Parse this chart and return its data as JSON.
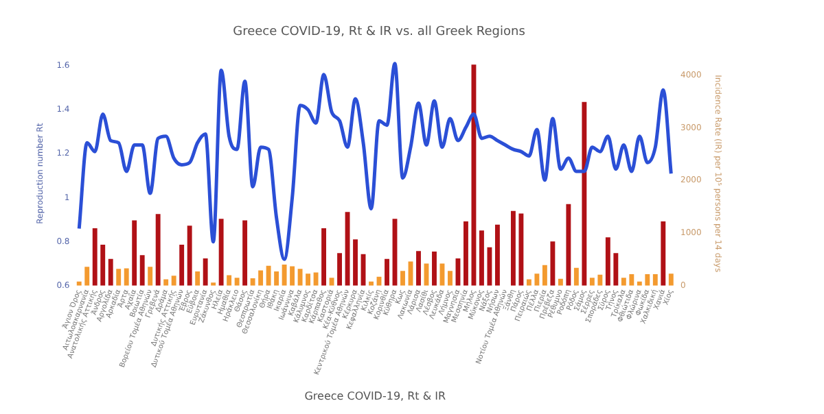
{
  "chart_data": {
    "type": "bar",
    "title": "Greece COVID-19, Rt & IR vs. all Greek Regions",
    "xlabel": "Greece COVID-19, Rt & IR",
    "ylabel": "Reproduction number Rt",
    "y2label": "Incidence Rate (IR) per 10⁵ persons per 14 days",
    "categories": [
      "Άγιον Όρος",
      "Αιτωλοακαρνανία",
      "Ανατολικής Αττικής",
      "Άνδρος",
      "Αργολίδα",
      "Αρκαδία",
      "Άρτα",
      "Αχαΐα",
      "Βοιωτία",
      "Βορείου Τομέα Αθηνών",
      "Γρεβενά",
      "Δράμα",
      "Δυτικής Αττικής",
      "Δυτικού Τομέα Αθηνών",
      "Έβρος",
      "Εύβοια",
      "Ευρυτανία",
      "Ζάκυνθος",
      "Ηλεία",
      "Ημαθία",
      "Ηράκλειο",
      "Θάσος",
      "Θεσπρωτία",
      "Θεσσαλονίκη",
      "Θήρα",
      "Ιθάκη",
      "Ικαρία",
      "Ιωάννινα",
      "Καβάλα",
      "Κάλυμνος",
      "Καρδίτσα",
      "Κάρπαθος",
      "Καστοριά",
      "Κέα-Κύθνος",
      "Κεντρικού Τομέα Αθηνών",
      "Κέρκυρα",
      "Κεφαλληνία",
      "Κιλκίς",
      "Κοζάνη",
      "Κορινθία",
      "Κύθηρα",
      "Κως",
      "Λακωνία",
      "Λάρισα",
      "Λασίθι",
      "Λέσβος",
      "Λευκάδα",
      "Λήμνος",
      "Μαγνησία",
      "Μεσσηνία",
      "Μήλος",
      "Μύκονος",
      "Νάξος",
      "Νήσων",
      "Νοτίου Τομέα Αθηνών",
      "Ξάνθη",
      "Πάρος",
      "Πειραιώς",
      "Πέλλα",
      "Πιερία",
      "Πρέβεζα",
      "Ρέθυμνο",
      "Ροδόπη",
      "Ρόδος",
      "Σάμος",
      "Σέρρες",
      "Σποράδες",
      "Σύρος",
      "Τήνος",
      "Τρίκαλα",
      "Φθιώτιδα",
      "Φλώρινα",
      "Φωκίδα",
      "Χαλκιδική",
      "Χανιά",
      "Χίος"
    ],
    "series": [
      {
        "axis": "y2",
        "colors": [
          "#f39a2f",
          "#f39a2f",
          "#b01116",
          "#b01116",
          "#b01116",
          "#f39a2f",
          "#f39a2f",
          "#b01116",
          "#b01116",
          "#f39a2f",
          "#b01116",
          "#f39a2f",
          "#f39a2f",
          "#b01116",
          "#b01116",
          "#f39a2f",
          "#b01116",
          "#f39a2f",
          "#b01116",
          "#f39a2f",
          "#f39a2f",
          "#b01116",
          "#f39a2f",
          "#f39a2f",
          "#f39a2f",
          "#f39a2f",
          "#f39a2f",
          "#f39a2f",
          "#f39a2f",
          "#f39a2f",
          "#f39a2f",
          "#b01116",
          "#f39a2f",
          "#b01116",
          "#b01116",
          "#b01116",
          "#b01116",
          "#f39a2f",
          "#f39a2f",
          "#b01116",
          "#b01116",
          "#f39a2f",
          "#f39a2f",
          "#b01116",
          "#f39a2f",
          "#b01116",
          "#f39a2f",
          "#f39a2f",
          "#b01116",
          "#b01116",
          "#b01116",
          "#b01116",
          "#b01116",
          "#b01116",
          "#f39a2f",
          "#b01116",
          "#b01116",
          "#f39a2f",
          "#f39a2f",
          "#f39a2f",
          "#b01116",
          "#f39a2f",
          "#b01116",
          "#f39a2f",
          "#b01116",
          "#f39a2f",
          "#f39a2f",
          "#b01116",
          "#b01116",
          "#f39a2f",
          "#f39a2f",
          "#f39a2f",
          "#f39a2f",
          "#f39a2f",
          "#b01116",
          "#f39a2f"
        ],
        "values": [
          80,
          360,
          1090,
          780,
          510,
          320,
          330,
          1240,
          580,
          360,
          1360,
          120,
          190,
          780,
          1140,
          270,
          520,
          60,
          1270,
          200,
          150,
          1240,
          140,
          290,
          380,
          270,
          400,
          370,
          320,
          230,
          250,
          1090,
          150,
          620,
          1400,
          880,
          600,
          80,
          170,
          510,
          1270,
          280,
          460,
          660,
          420,
          650,
          420,
          280,
          520,
          1220,
          4200,
          1050,
          730,
          1160,
          null,
          1420,
          1370,
          120,
          230,
          390,
          840,
          130,
          1550,
          340,
          3490,
          150,
          210,
          920,
          620,
          150,
          220,
          80,
          220,
          220,
          1220,
          230
        ]
      },
      {
        "type": "line",
        "axis": "y",
        "color": "#2b4fd6",
        "values": [
          0.86,
          1.25,
          1.21,
          1.38,
          1.26,
          1.25,
          1.12,
          1.24,
          1.24,
          1.02,
          1.27,
          1.28,
          1.18,
          1.15,
          1.16,
          1.25,
          1.29,
          0.8,
          1.58,
          1.28,
          1.22,
          1.53,
          1.05,
          1.23,
          1.22,
          0.91,
          0.72,
          1.0,
          1.42,
          1.4,
          1.34,
          1.56,
          1.39,
          1.35,
          1.23,
          1.45,
          1.25,
          0.95,
          1.35,
          1.33,
          1.61,
          1.09,
          1.23,
          1.43,
          1.24,
          1.44,
          1.23,
          1.36,
          1.26,
          1.32,
          1.38,
          1.27,
          1.28,
          1.26,
          1.24,
          1.22,
          1.21,
          1.19,
          1.31,
          1.08,
          1.36,
          1.13,
          1.18,
          1.12,
          1.12,
          1.23,
          1.21,
          1.28,
          1.13,
          1.24,
          1.12,
          1.28,
          1.16,
          1.23,
          1.49,
          1.11
        ]
      }
    ],
    "ylim": [
      0.6,
      1.62
    ],
    "yticks": [
      0.6,
      0.8,
      1,
      1.2,
      1.4,
      1.6
    ],
    "y2lim": [
      0,
      4260
    ],
    "y2ticks": [
      0,
      1000,
      2000,
      3000,
      4000
    ],
    "grid": false,
    "legend": false,
    "marker": "none",
    "line_style": "solid"
  }
}
